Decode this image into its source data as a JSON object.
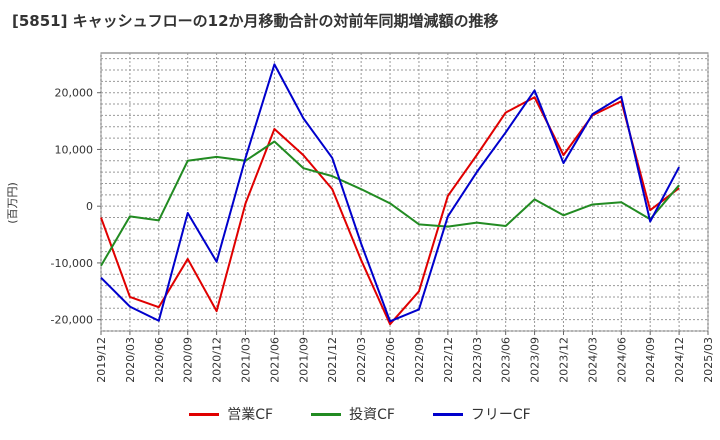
{
  "chart_data": {
    "type": "line",
    "title": "[5851]  キャッシュフローの12か月移動合計の対前年同期増減額の推移",
    "ylabel": "(百万円)",
    "xlabel": "",
    "ylim": [
      -22000,
      27000
    ],
    "yticks": [
      -20000,
      -10000,
      0,
      10000,
      20000
    ],
    "ytick_labels": [
      "-20,000",
      "-10,000",
      "0",
      "10,000",
      "20,000"
    ],
    "x": [
      "2019/12",
      "2020/03",
      "2020/06",
      "2020/09",
      "2020/12",
      "2021/03",
      "2021/06",
      "2021/09",
      "2021/12",
      "2022/03",
      "2022/06",
      "2022/09",
      "2022/12",
      "2023/03",
      "2023/06",
      "2023/09",
      "2023/12",
      "2024/03",
      "2024/06",
      "2024/09",
      "2024/12",
      "2025/03"
    ],
    "grid": true,
    "legend_position": "bottom",
    "series": [
      {
        "name": "営業CF",
        "color": "#e00000",
        "values": [
          -2000,
          -16000,
          -17800,
          -9300,
          -18500,
          500,
          13600,
          9000,
          3000,
          -9500,
          -20800,
          -15000,
          1800,
          9000,
          16500,
          19200,
          9000,
          16000,
          18500,
          -700,
          3200,
          null
        ]
      },
      {
        "name": "投資CF",
        "color": "#228b22",
        "values": [
          -10500,
          -1800,
          -2500,
          8000,
          8700,
          8000,
          11400,
          6700,
          5300,
          3000,
          500,
          -3200,
          -3600,
          -2900,
          -3500,
          1200,
          -1600,
          300,
          700,
          -2300,
          3700,
          null
        ]
      },
      {
        "name": "フリーCF",
        "color": "#0000cc",
        "values": [
          -12600,
          -17700,
          -20200,
          -1200,
          -9800,
          8500,
          25000,
          15500,
          8500,
          -6600,
          -20300,
          -18200,
          -1800,
          6000,
          13000,
          20400,
          7600,
          16200,
          19300,
          -2700,
          6900,
          null
        ]
      }
    ]
  }
}
